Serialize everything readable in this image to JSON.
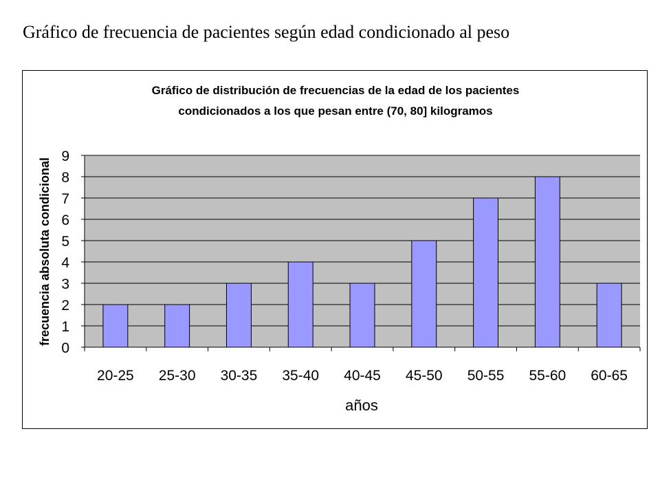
{
  "page": {
    "heading": "Gráfico de frecuencia de pacientes según edad condicionado al peso"
  },
  "chart_data": {
    "type": "bar",
    "title_line1": "Gráfico de distribución de frecuencias de la edad de los pacientes",
    "title_line2": "condicionados a los que pesan entre (70, 80] kilogramos",
    "xlabel": "años",
    "ylabel": "frecuencia absoluta condicional",
    "categories": [
      "20-25",
      "25-30",
      "30-35",
      "35-40",
      "40-45",
      "45-50",
      "50-55",
      "55-60",
      "60-65"
    ],
    "values": [
      2,
      2,
      3,
      4,
      3,
      5,
      7,
      8,
      3
    ],
    "ylim": [
      0,
      9
    ],
    "yticks": [
      0,
      1,
      2,
      3,
      4,
      5,
      6,
      7,
      8,
      9
    ],
    "grid": true,
    "legend": "none",
    "colors": {
      "bar_fill": "#9999ff",
      "plot_background": "#c0c0c0",
      "gridline": "#000000"
    }
  }
}
